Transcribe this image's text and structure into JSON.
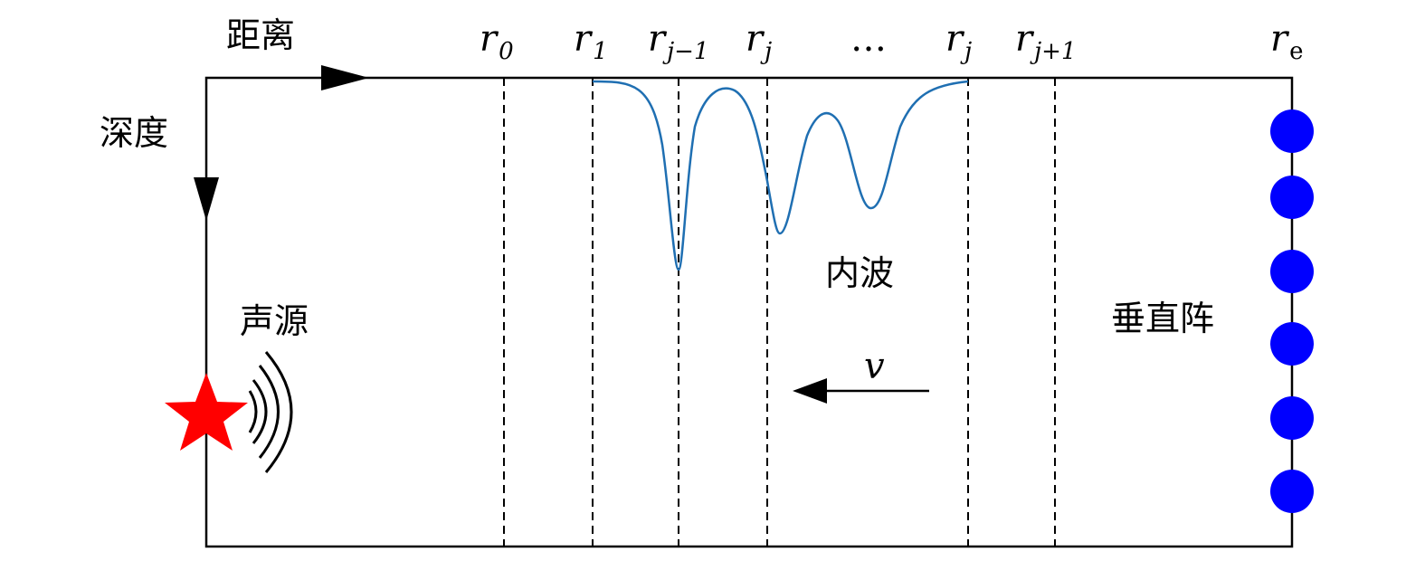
{
  "labels": {
    "distance": "距离",
    "depth": "深度",
    "source": "声源",
    "internal_wave": "内波",
    "vertical_array": "垂直阵",
    "velocity": "v"
  },
  "range_markers": [
    {
      "base": "r",
      "sub": "0"
    },
    {
      "base": "r",
      "sub": "1"
    },
    {
      "base": "r",
      "sub": "j−1"
    },
    {
      "base": "r",
      "sub": "j"
    },
    {
      "base": "…",
      "sub": ""
    },
    {
      "base": "r",
      "sub": "j"
    },
    {
      "base": "r",
      "sub": "j+1"
    },
    {
      "base": "r",
      "sub": "e"
    }
  ],
  "colors": {
    "frame": "#000000",
    "source_star": "#ff0000",
    "hydrophone": "#0000ff",
    "wave_curve": "#1f6fb2"
  },
  "icons": {
    "source": "star-icon",
    "sound_waves": "sound-wave-arcs-icon",
    "hydrophone": "circle-icon"
  },
  "hydrophone_count": 6
}
